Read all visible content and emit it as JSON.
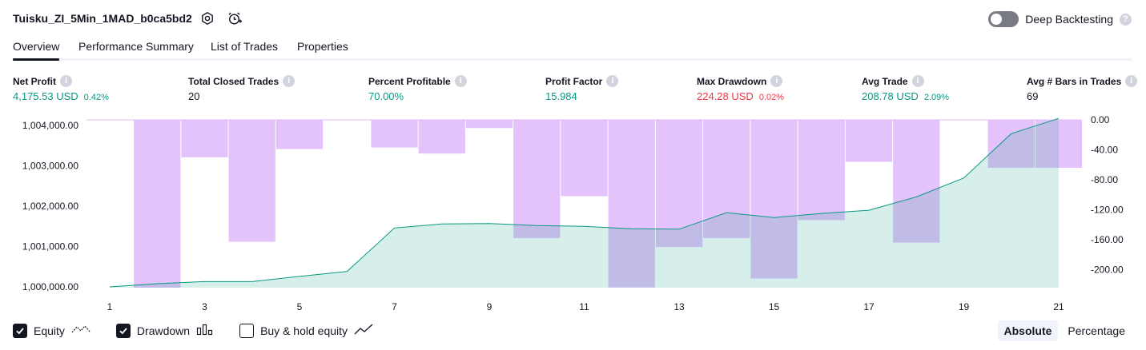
{
  "header": {
    "strategy_name": "Tuisku_ZI_5Min_1MAD_b0ca5bd2",
    "settings_icon": "gear-icon",
    "alert_icon": "alarm-clock-plus-icon",
    "deep_backtesting_label": "Deep Backtesting",
    "deep_backtesting_enabled": false,
    "help_icon": "question-icon"
  },
  "tabs": [
    {
      "label": "Overview",
      "active": true
    },
    {
      "label": "Performance Summary",
      "active": false
    },
    {
      "label": "List of Trades",
      "active": false
    },
    {
      "label": "Properties",
      "active": false
    }
  ],
  "metrics": [
    {
      "label": "Net Profit",
      "value": "4,175.53 USD",
      "pct": "0.42%",
      "color": "#089981"
    },
    {
      "label": "Total Closed Trades",
      "value": "20",
      "pct": "",
      "color": "#131722"
    },
    {
      "label": "Percent Profitable",
      "value": "70.00%",
      "pct": "",
      "color": "#089981"
    },
    {
      "label": "Profit Factor",
      "value": "15.984",
      "pct": "",
      "color": "#089981"
    },
    {
      "label": "Max Drawdown",
      "value": "224.28 USD",
      "pct": "0.02%",
      "color": "#f23645"
    },
    {
      "label": "Avg Trade",
      "value": "208.78 USD",
      "pct": "2.09%",
      "color": "#089981"
    },
    {
      "label": "Avg # Bars in Trades",
      "value": "69",
      "pct": "",
      "color": "#131722"
    }
  ],
  "chart_data": {
    "type": "area",
    "equity_color": "#089981",
    "drawdown_color": "#e1bbfb",
    "x_ticks": [
      "1",
      "3",
      "5",
      "7",
      "9",
      "11",
      "13",
      "15",
      "17",
      "19",
      "21"
    ],
    "left_axis_ticks": [
      "1,004,000.00",
      "1,003,000.00",
      "1,002,000.00",
      "1,001,000.00",
      "1,000,000.00"
    ],
    "left_axis_range": [
      999980,
      1004140
    ],
    "right_axis_ticks": [
      "0.00",
      "-40.00",
      "-80.00",
      "-120.00",
      "-160.00",
      "-200.00"
    ],
    "right_axis_range": [
      -224.28,
      0
    ],
    "equity": {
      "name": "Equity",
      "x": [
        1,
        2,
        3,
        4,
        5,
        6,
        7,
        8,
        9,
        10,
        11,
        12,
        13,
        14,
        15,
        16,
        17,
        18,
        19,
        20,
        21
      ],
      "values": [
        1000000,
        1000080,
        1000130,
        1000130,
        1000260,
        1000380,
        1001460,
        1001560,
        1001570,
        1001520,
        1001500,
        1001440,
        1001430,
        1001840,
        1001720,
        1001820,
        1001900,
        1002230,
        1002700,
        1003800,
        1004175.53
      ]
    },
    "drawdown": {
      "name": "Drawdown",
      "x": [
        2,
        3,
        4,
        5,
        6,
        7,
        8,
        9,
        10,
        11,
        12,
        13,
        14,
        15,
        16,
        17,
        18,
        19,
        20,
        21
      ],
      "values": [
        -224.28,
        -50,
        -163,
        -39,
        0,
        -37,
        -45,
        -11,
        -158,
        -102,
        -224,
        -170,
        -158,
        -212,
        -134,
        -56,
        -164,
        0,
        -64,
        -64
      ]
    }
  },
  "legend": [
    {
      "label": "Equity",
      "checked": true,
      "icon": "equity-line-icon"
    },
    {
      "label": "Drawdown",
      "checked": true,
      "icon": "drawdown-bars-icon"
    },
    {
      "label": "Buy & hold equity",
      "checked": false,
      "icon": "trend-line-icon"
    }
  ],
  "scale_modes": [
    {
      "label": "Absolute",
      "active": true
    },
    {
      "label": "Percentage",
      "active": false
    }
  ]
}
